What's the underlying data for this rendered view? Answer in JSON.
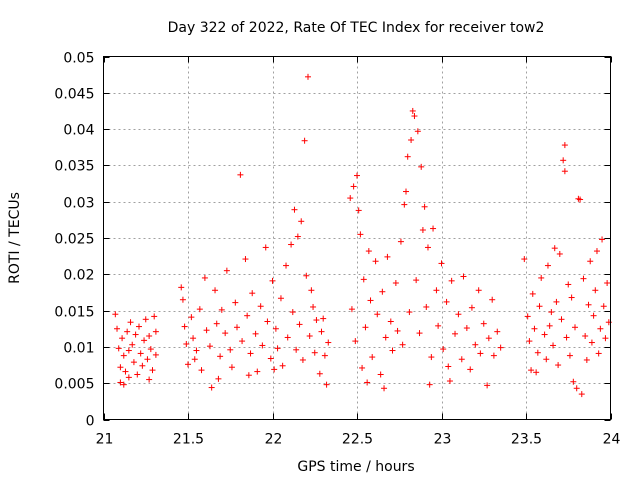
{
  "chart_data": {
    "type": "scatter",
    "title": "Day 322 of 2022, Rate Of TEC Index for receiver tow2",
    "xlabel": "GPS time / hours",
    "ylabel": "ROTI / TECUs",
    "xlim": [
      21,
      24
    ],
    "ylim": [
      0,
      0.05
    ],
    "x_ticks": [
      21,
      21.5,
      22,
      22.5,
      23,
      23.5,
      24
    ],
    "x_tick_labels": [
      "21",
      "21.5",
      "22",
      "22.5",
      "23",
      "23.5",
      "24"
    ],
    "y_ticks": [
      0,
      0.005,
      0.01,
      0.015,
      0.02,
      0.025,
      0.03,
      0.035,
      0.04,
      0.045,
      0.05
    ],
    "y_tick_labels": [
      "0",
      "0.005",
      "0.01",
      "0.015",
      "0.02",
      "0.025",
      "0.03",
      "0.035",
      "0.04",
      "0.045",
      "0.05"
    ],
    "grid": true,
    "marker": "+",
    "color": "#ff0000",
    "series": [
      {
        "name": "ROTI",
        "points": [
          [
            21.07,
            0.0145
          ],
          [
            21.08,
            0.0125
          ],
          [
            21.09,
            0.0098
          ],
          [
            21.1,
            0.0072
          ],
          [
            21.1,
            0.0051
          ],
          [
            21.11,
            0.0112
          ],
          [
            21.12,
            0.0088
          ],
          [
            21.13,
            0.0066
          ],
          [
            21.14,
            0.0121
          ],
          [
            21.15,
            0.0095
          ],
          [
            21.15,
            0.0058
          ],
          [
            21.16,
            0.0134
          ],
          [
            21.17,
            0.0103
          ],
          [
            21.18,
            0.0079
          ],
          [
            21.19,
            0.0117
          ],
          [
            21.2,
            0.0062
          ],
          [
            21.21,
            0.0128
          ],
          [
            21.22,
            0.0091
          ],
          [
            21.23,
            0.0074
          ],
          [
            21.24,
            0.0109
          ],
          [
            21.25,
            0.0138
          ],
          [
            21.26,
            0.0083
          ],
          [
            21.27,
            0.0115
          ],
          [
            21.28,
            0.0097
          ],
          [
            21.29,
            0.0068
          ],
          [
            21.3,
            0.0142
          ],
          [
            21.31,
            0.0121
          ],
          [
            21.31,
            0.0089
          ],
          [
            21.12,
            0.0048
          ],
          [
            21.27,
            0.0055
          ],
          [
            21.46,
            0.0182
          ],
          [
            21.47,
            0.0165
          ],
          [
            21.48,
            0.0128
          ],
          [
            21.49,
            0.0104
          ],
          [
            21.5,
            0.0076
          ],
          [
            21.52,
            0.0141
          ],
          [
            21.53,
            0.0112
          ],
          [
            21.55,
            0.0095
          ],
          [
            21.57,
            0.0152
          ],
          [
            21.58,
            0.0068
          ],
          [
            21.6,
            0.0195
          ],
          [
            21.61,
            0.0123
          ],
          [
            21.63,
            0.0101
          ],
          [
            21.64,
            0.0044
          ],
          [
            21.66,
            0.0178
          ],
          [
            21.67,
            0.0132
          ],
          [
            21.69,
            0.0087
          ],
          [
            21.7,
            0.0151
          ],
          [
            21.72,
            0.0119
          ],
          [
            21.73,
            0.0205
          ],
          [
            21.75,
            0.0096
          ],
          [
            21.76,
            0.0072
          ],
          [
            21.78,
            0.0161
          ],
          [
            21.79,
            0.0127
          ],
          [
            21.81,
            0.0337
          ],
          [
            21.82,
            0.0108
          ],
          [
            21.84,
            0.0221
          ],
          [
            21.85,
            0.0143
          ],
          [
            21.87,
            0.0091
          ],
          [
            21.88,
            0.0174
          ],
          [
            21.9,
            0.0118
          ],
          [
            21.91,
            0.0066
          ],
          [
            21.93,
            0.0156
          ],
          [
            21.94,
            0.0102
          ],
          [
            21.96,
            0.0237
          ],
          [
            21.97,
            0.0135
          ],
          [
            21.99,
            0.0084
          ],
          [
            22.0,
            0.0191
          ],
          [
            22.02,
            0.0125
          ],
          [
            22.03,
            0.0098
          ],
          [
            22.05,
            0.0167
          ],
          [
            22.06,
            0.0074
          ],
          [
            22.08,
            0.0212
          ],
          [
            22.09,
            0.0113
          ],
          [
            22.11,
            0.0241
          ],
          [
            22.12,
            0.0148
          ],
          [
            22.13,
            0.0289
          ],
          [
            22.14,
            0.0096
          ],
          [
            22.15,
            0.0252
          ],
          [
            22.16,
            0.0131
          ],
          [
            22.17,
            0.0273
          ],
          [
            22.18,
            0.0082
          ],
          [
            22.19,
            0.0384
          ],
          [
            22.2,
            0.0198
          ],
          [
            22.21,
            0.0472
          ],
          [
            22.22,
            0.0115
          ],
          [
            22.23,
            0.0178
          ],
          [
            22.25,
            0.0092
          ],
          [
            22.26,
            0.0137
          ],
          [
            22.28,
            0.0063
          ],
          [
            22.29,
            0.0121
          ],
          [
            22.31,
            0.0088
          ],
          [
            22.32,
            0.0048
          ],
          [
            22.33,
            0.0106
          ],
          [
            21.54,
            0.0083
          ],
          [
            21.68,
            0.0056
          ],
          [
            21.86,
            0.0061
          ],
          [
            22.01,
            0.0069
          ],
          [
            22.24,
            0.0155
          ],
          [
            22.3,
            0.0139
          ],
          [
            22.46,
            0.0305
          ],
          [
            22.47,
            0.0152
          ],
          [
            22.48,
            0.0321
          ],
          [
            22.49,
            0.0108
          ],
          [
            22.5,
            0.0336
          ],
          [
            22.51,
            0.0288
          ],
          [
            22.52,
            0.0255
          ],
          [
            22.53,
            0.0071
          ],
          [
            22.54,
            0.0193
          ],
          [
            22.55,
            0.0127
          ],
          [
            22.57,
            0.0232
          ],
          [
            22.58,
            0.0164
          ],
          [
            22.59,
            0.0086
          ],
          [
            22.61,
            0.0218
          ],
          [
            22.62,
            0.0145
          ],
          [
            22.64,
            0.0062
          ],
          [
            22.65,
            0.0176
          ],
          [
            22.67,
            0.0113
          ],
          [
            22.68,
            0.0224
          ],
          [
            22.7,
            0.0135
          ],
          [
            22.71,
            0.0095
          ],
          [
            22.73,
            0.0188
          ],
          [
            22.74,
            0.0122
          ],
          [
            22.76,
            0.0245
          ],
          [
            22.77,
            0.0103
          ],
          [
            22.78,
            0.0296
          ],
          [
            22.79,
            0.0314
          ],
          [
            22.8,
            0.0362
          ],
          [
            22.81,
            0.0148
          ],
          [
            22.82,
            0.0385
          ],
          [
            22.83,
            0.0425
          ],
          [
            22.84,
            0.0418
          ],
          [
            22.85,
            0.0192
          ],
          [
            22.86,
            0.0397
          ],
          [
            22.87,
            0.0119
          ],
          [
            22.88,
            0.0348
          ],
          [
            22.89,
            0.0261
          ],
          [
            22.9,
            0.0293
          ],
          [
            22.91,
            0.0155
          ],
          [
            22.92,
            0.0237
          ],
          [
            22.94,
            0.0086
          ],
          [
            22.95,
            0.0263
          ],
          [
            22.97,
            0.0178
          ],
          [
            22.98,
            0.0129
          ],
          [
            23.0,
            0.0215
          ],
          [
            23.01,
            0.0097
          ],
          [
            23.03,
            0.0162
          ],
          [
            23.05,
            0.0053
          ],
          [
            23.06,
            0.0191
          ],
          [
            23.08,
            0.0118
          ],
          [
            23.1,
            0.0145
          ],
          [
            23.12,
            0.0083
          ],
          [
            23.13,
            0.0197
          ],
          [
            23.15,
            0.0126
          ],
          [
            23.17,
            0.0069
          ],
          [
            23.18,
            0.0154
          ],
          [
            23.2,
            0.0103
          ],
          [
            23.22,
            0.0178
          ],
          [
            23.23,
            0.0091
          ],
          [
            23.25,
            0.0132
          ],
          [
            23.27,
            0.0047
          ],
          [
            23.28,
            0.0112
          ],
          [
            23.3,
            0.0165
          ],
          [
            23.31,
            0.0088
          ],
          [
            23.33,
            0.0121
          ],
          [
            23.35,
            0.0099
          ],
          [
            22.56,
            0.0051
          ],
          [
            22.66,
            0.0043
          ],
          [
            22.93,
            0.0048
          ],
          [
            23.04,
            0.0073
          ],
          [
            23.49,
            0.0221
          ],
          [
            23.51,
            0.0142
          ],
          [
            23.52,
            0.0108
          ],
          [
            23.53,
            0.0068
          ],
          [
            23.54,
            0.0173
          ],
          [
            23.55,
            0.0125
          ],
          [
            23.57,
            0.0092
          ],
          [
            23.58,
            0.0156
          ],
          [
            23.59,
            0.0195
          ],
          [
            23.61,
            0.0117
          ],
          [
            23.62,
            0.0083
          ],
          [
            23.63,
            0.0212
          ],
          [
            23.65,
            0.0148
          ],
          [
            23.66,
            0.0102
          ],
          [
            23.67,
            0.0236
          ],
          [
            23.68,
            0.0162
          ],
          [
            23.69,
            0.0075
          ],
          [
            23.7,
            0.0228
          ],
          [
            23.71,
            0.0138
          ],
          [
            23.72,
            0.0357
          ],
          [
            23.73,
            0.0378
          ],
          [
            23.73,
            0.0342
          ],
          [
            23.74,
            0.0113
          ],
          [
            23.75,
            0.0186
          ],
          [
            23.76,
            0.0088
          ],
          [
            23.77,
            0.0168
          ],
          [
            23.78,
            0.0052
          ],
          [
            23.79,
            0.0127
          ],
          [
            23.8,
            0.0043
          ],
          [
            23.81,
            0.0304
          ],
          [
            23.82,
            0.0303
          ],
          [
            23.83,
            0.0035
          ],
          [
            23.84,
            0.0194
          ],
          [
            23.85,
            0.0115
          ],
          [
            23.86,
            0.0082
          ],
          [
            23.87,
            0.0158
          ],
          [
            23.88,
            0.0218
          ],
          [
            23.89,
            0.0106
          ],
          [
            23.9,
            0.0143
          ],
          [
            23.91,
            0.0178
          ],
          [
            23.92,
            0.0232
          ],
          [
            23.93,
            0.0091
          ],
          [
            23.94,
            0.0125
          ],
          [
            23.95,
            0.0248
          ],
          [
            23.96,
            0.0156
          ],
          [
            23.97,
            0.0112
          ],
          [
            23.98,
            0.0188
          ],
          [
            23.99,
            0.0134
          ],
          [
            23.56,
            0.0065
          ],
          [
            23.64,
            0.0129
          ]
        ]
      }
    ]
  }
}
